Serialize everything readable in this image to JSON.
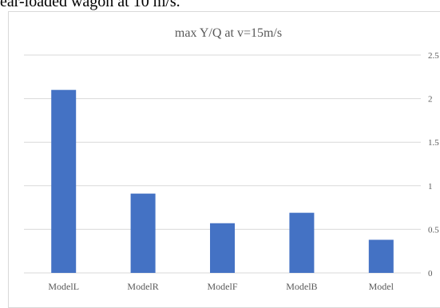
{
  "caption": "ear-loaded wagon at 10 m/s.",
  "chart_data": {
    "type": "bar",
    "title": "max Y/Q at v=15m/s",
    "categories": [
      "ModelL",
      "ModelR",
      "ModelF",
      "ModelB",
      "Model"
    ],
    "values": [
      2.1,
      0.91,
      0.57,
      0.69,
      0.38
    ],
    "ylim": [
      0,
      2.5
    ],
    "yticks": [
      "0",
      "0.5",
      "1",
      "1.5",
      "2",
      "2.5"
    ],
    "grid": true,
    "legend": "none",
    "bar_color": "#4472c4",
    "grid_color": "#d9d9d9"
  }
}
